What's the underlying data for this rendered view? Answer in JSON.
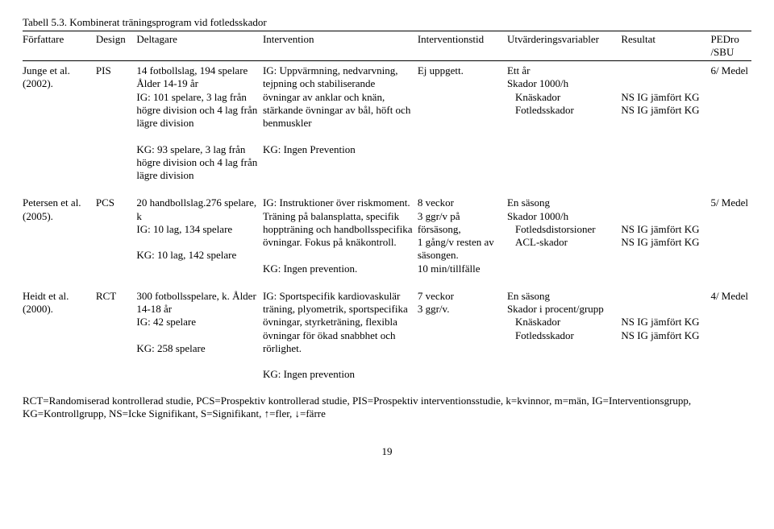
{
  "caption": "Tabell 5.3. Kombinerat träningsprogram vid fotledsskador",
  "headers": {
    "author": "Författare",
    "design": "Design",
    "participants": "Deltagare",
    "intervention": "Intervention",
    "time": "Interventionstid",
    "evalvars": "Utvärderingsvariabler",
    "result": "Resultat",
    "pedro": "PEDro /SBU"
  },
  "rows": [
    {
      "author": "Junge et al. (2002).",
      "design": "PIS",
      "participants": "14 fotbollslag, 194 spelare Ålder 14-19 år\nIG: 101 spelare, 3 lag från högre division och 4 lag från lägre division\n\nKG: 93 spelare, 3 lag från högre division och 4 lag från lägre division",
      "intervention": "IG: Uppvärmning, nedvarvning, tejpning och stabiliserande övningar av anklar och knän, stärkande övningar av bål, höft och benmuskler\n\nKG: Ingen Prevention",
      "time": "Ej uppgett.",
      "evalvars_head": "Ett år",
      "evalvars_sub": "Skador 1000/h",
      "evalvars_items": [
        "Knäskador",
        "Fotledsskador"
      ],
      "results": [
        "",
        "NS IG jämfört KG",
        "NS IG jämfört KG"
      ],
      "pedro": "6/ Medel"
    },
    {
      "author": "Petersen et al. (2005).",
      "design": "PCS",
      "participants": "20 handbollslag.276 spelare, k\nIG: 10 lag, 134 spelare\n\nKG: 10 lag, 142 spelare",
      "intervention": "IG: Instruktioner över riskmoment. Träning på balansplatta, specifik hoppträning och handbollsspecifika övningar. Fokus på knäkontroll.\n\nKG: Ingen prevention.",
      "time": "8 veckor\n 3 ggr/v på försäsong,\n1 gång/v resten av säsongen.\n10 min/tillfälle",
      "evalvars_head": "En säsong",
      "evalvars_sub": "Skador 1000/h",
      "evalvars_items": [
        "Fotledsdistorsioner",
        "ACL-skador"
      ],
      "results": [
        "",
        "NS IG jämfört KG",
        "NS IG jämfört KG"
      ],
      "pedro": "5/ Medel"
    },
    {
      "author": "Heidt et al. (2000).",
      "design": "RCT",
      "participants": "300 fotbollsspelare, k. Ålder 14-18 år\nIG: 42 spelare\n\nKG: 258 spelare",
      "intervention": "IG: Sportspecifik kardiovaskulär träning, plyometrik, sportspecifika övningar, styrketräning, flexibla övningar för ökad snabbhet och rörlighet.\n\nKG: Ingen prevention",
      "time": "7 veckor\n3 ggr/v.",
      "evalvars_head": "En säsong",
      "evalvars_sub": "Skador i procent/grupp",
      "evalvars_items": [
        "Knäskador",
        "Fotledsskador"
      ],
      "results": [
        "",
        "NS IG jämfört KG",
        "NS IG jämfört KG"
      ],
      "pedro": "4/ Medel"
    }
  ],
  "footnote": "RCT=Randomiserad kontrollerad studie, PCS=Prospektiv kontrollerad studie, PIS=Prospektiv interventionsstudie, k=kvinnor, m=män, IG=Interventionsgrupp, KG=Kontrollgrupp, NS=Icke Signifikant, S=Signifikant, ↑=fler, ↓=färre",
  "page_number": "19"
}
